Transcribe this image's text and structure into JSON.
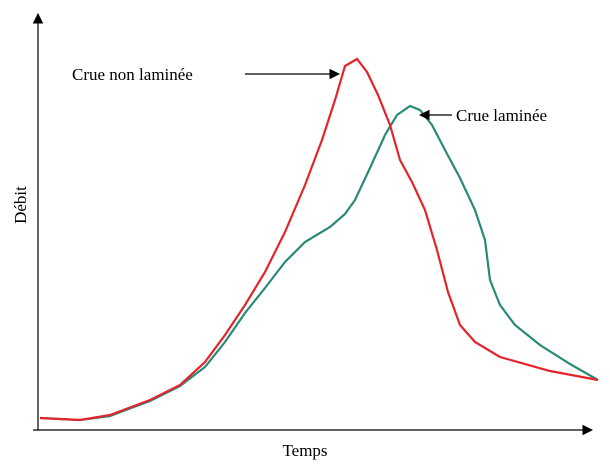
{
  "y_axis_label": "Débit",
  "x_axis_label": "Temps",
  "annotations": [
    "Crue non laminée",
    "Crue laminée"
  ]
}
